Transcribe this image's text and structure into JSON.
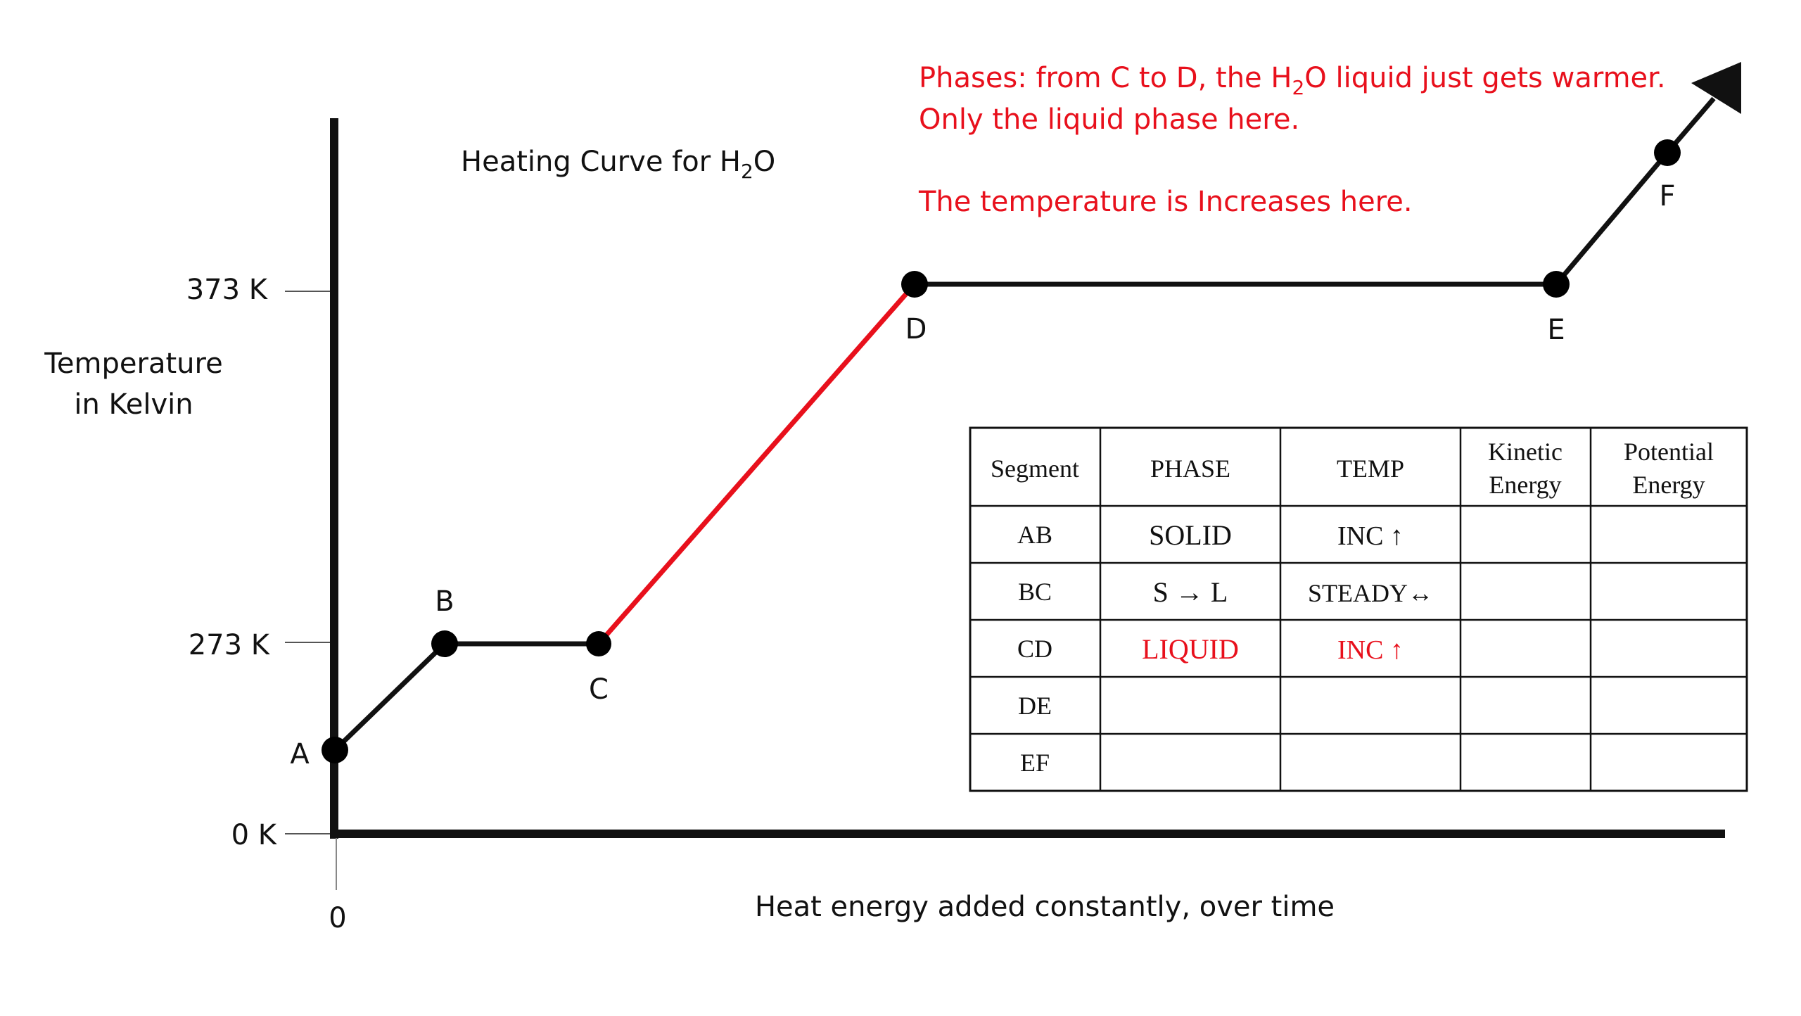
{
  "title": {
    "pre": "Heating Curve for H",
    "sub": "2",
    "post": "O"
  },
  "y_axis": {
    "label_line1": "Temperature",
    "label_line2": "in Kelvin",
    "ticks": [
      {
        "label": "373 K",
        "value": 373
      },
      {
        "label": "273 K",
        "value": 273
      },
      {
        "label": "0 K",
        "value": 0
      }
    ]
  },
  "x_axis": {
    "origin_label": "0",
    "label": "Heat energy added constantly, over time"
  },
  "points": [
    {
      "id": "A",
      "label": "A"
    },
    {
      "id": "B",
      "label": "B"
    },
    {
      "id": "C",
      "label": "C"
    },
    {
      "id": "D",
      "label": "D"
    },
    {
      "id": "E",
      "label": "E"
    },
    {
      "id": "F",
      "label": "F"
    }
  ],
  "annotation": {
    "line1_pre": "Phases:  from C to D, the H",
    "line1_sub": "2",
    "line1_post": "O liquid just gets warmer.",
    "line2": "Only the liquid phase here.",
    "line3": "The temperature is Increases here.",
    "color": "#e8101c"
  },
  "table": {
    "headers": [
      {
        "line1": "Segment",
        "line2": ""
      },
      {
        "line1": "PHASE",
        "line2": ""
      },
      {
        "line1": "TEMP",
        "line2": ""
      },
      {
        "line1": "Kinetic",
        "line2": "Energy"
      },
      {
        "line1": "Potential",
        "line2": "Energy"
      }
    ],
    "rows": [
      {
        "segment": "AB",
        "phase": "SOLID",
        "temp": "INC ↑",
        "kinetic": "",
        "potential": "",
        "highlight": false
      },
      {
        "segment": "BC",
        "phase": "S → L",
        "temp": "STEADY↔",
        "kinetic": "",
        "potential": "",
        "highlight": false
      },
      {
        "segment": "CD",
        "phase": "LIQUID",
        "temp": "INC ↑",
        "kinetic": "",
        "potential": "",
        "highlight": true
      },
      {
        "segment": "DE",
        "phase": "",
        "temp": "",
        "kinetic": "",
        "potential": "",
        "highlight": false
      },
      {
        "segment": "EF",
        "phase": "",
        "temp": "",
        "kinetic": "",
        "potential": "",
        "highlight": false
      }
    ]
  },
  "highlight_segment": "CD",
  "colors": {
    "curve": "#111111",
    "highlight": "#e8101c"
  }
}
